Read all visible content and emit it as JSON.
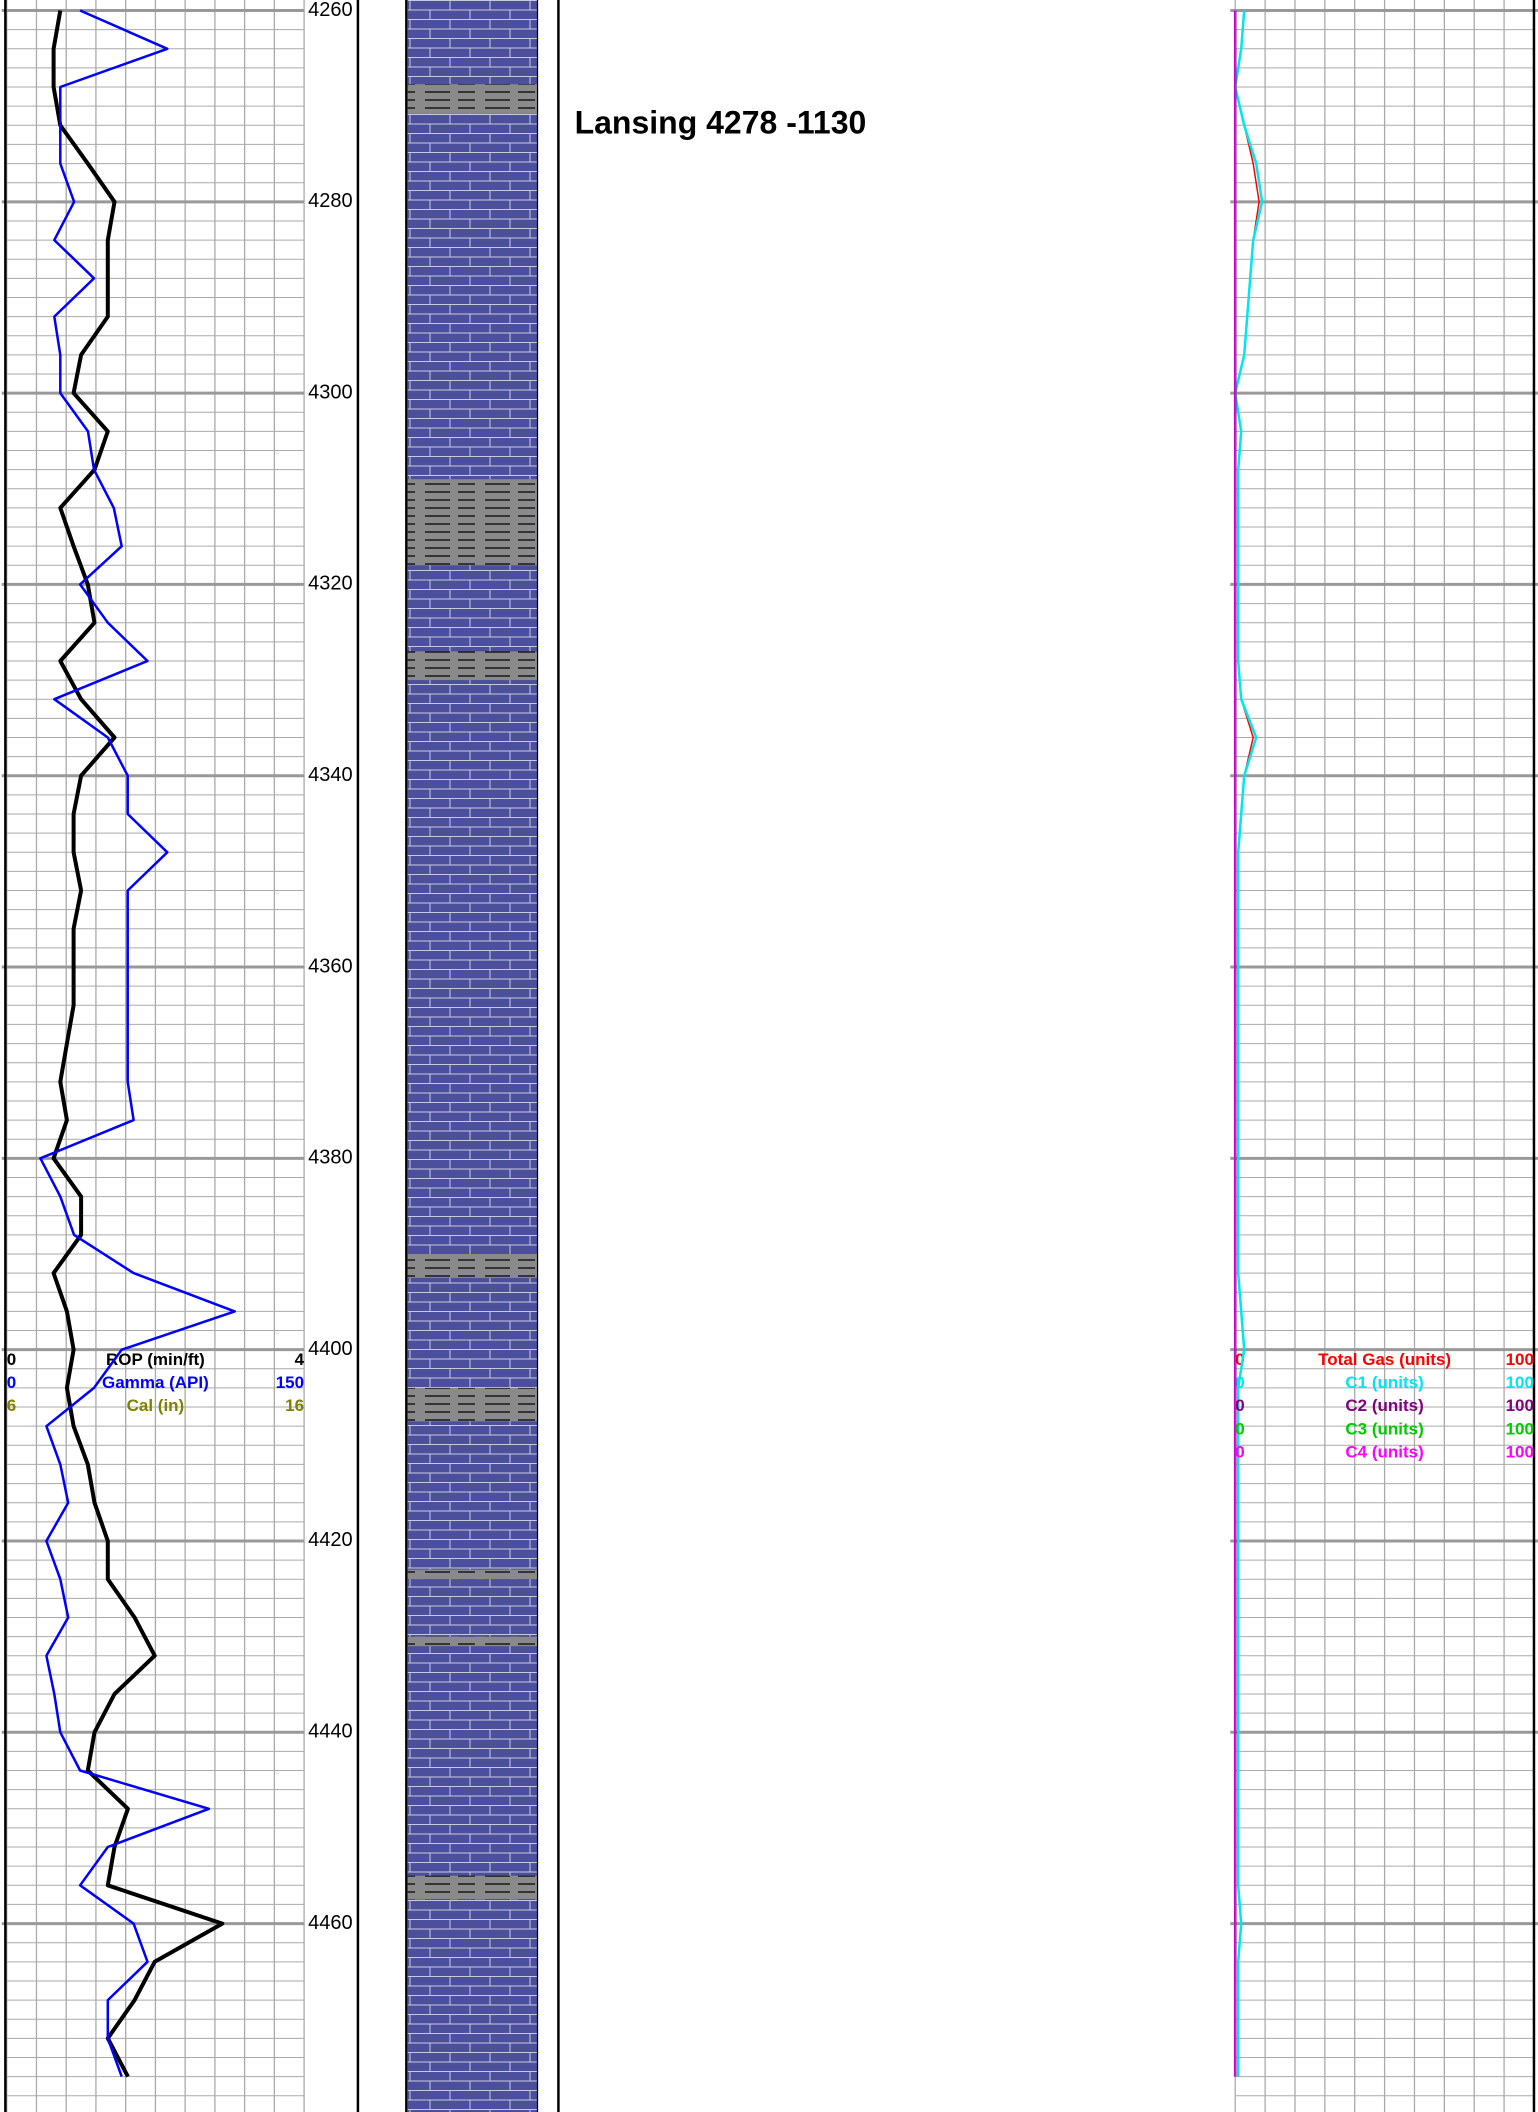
{
  "chart_data": {
    "type": "line",
    "ylim": [
      4258.9,
      4479.7
    ],
    "yticks": [
      4260,
      4280,
      4300,
      4320,
      4340,
      4360,
      4380,
      4400,
      4420,
      4440,
      4460
    ],
    "grid": true,
    "annotation": "Lansing 4278  -1130",
    "depths": [
      4260,
      4264,
      4268,
      4272,
      4276,
      4280,
      4284,
      4288,
      4292,
      4296,
      4300,
      4304,
      4308,
      4312,
      4316,
      4320,
      4324,
      4328,
      4332,
      4336,
      4340,
      4344,
      4348,
      4352,
      4356,
      4360,
      4364,
      4368,
      4372,
      4376,
      4380,
      4384,
      4388,
      4392,
      4396,
      4400,
      4404,
      4408,
      4412,
      4416,
      4420,
      4424,
      4428,
      4432,
      4436,
      4440,
      4444,
      4448,
      4452,
      4456,
      4460,
      4464,
      4468,
      4472,
      4476
    ],
    "shale_intervals": [
      [
        4267.7,
        4270.8
      ],
      [
        4309,
        4318
      ],
      [
        4327,
        4330
      ],
      [
        4390,
        4392.5
      ],
      [
        4404,
        4407.5
      ],
      [
        4423,
        4424
      ],
      [
        4430,
        4431
      ],
      [
        4455,
        4457.5
      ]
    ],
    "left_track": [
      {
        "name": "ROP (min/ft)",
        "color": "#000000",
        "xlim": [
          0,
          4
        ],
        "width": 4,
        "values": [
          0.72,
          0.63,
          0.63,
          0.72,
          1.09,
          1.45,
          1.36,
          1.36,
          1.36,
          1.0,
          0.9,
          1.36,
          1.18,
          0.72,
          0.9,
          1.09,
          1.18,
          0.72,
          1.0,
          1.45,
          1.0,
          0.9,
          0.9,
          1.0,
          0.9,
          0.9,
          0.9,
          0.81,
          0.72,
          0.81,
          0.63,
          1.0,
          1.0,
          0.63,
          0.81,
          0.9,
          0.81,
          0.9,
          1.09,
          1.18,
          1.36,
          1.36,
          1.72,
          1.99,
          1.45,
          1.18,
          1.09,
          1.63,
          1.45,
          1.36,
          2.9,
          1.99,
          1.72,
          1.36,
          1.63
        ]
      },
      {
        "name": "Gamma (API)",
        "color": "#0000ff",
        "xlim": [
          0,
          150
        ],
        "width": 2.5,
        "values": [
          37,
          81,
          27,
          27,
          27,
          34,
          24,
          44,
          24,
          27,
          27,
          41,
          44,
          54,
          58,
          37,
          51,
          71,
          24,
          51,
          61,
          61,
          81,
          61,
          61,
          61,
          61,
          61,
          61,
          64,
          17,
          27,
          34,
          64,
          115,
          58,
          44,
          20,
          27,
          31,
          20,
          27,
          31,
          20,
          24,
          27,
          37,
          102,
          51,
          37,
          64,
          71,
          51,
          51,
          58
        ]
      },
      {
        "name": "Cal (in)",
        "color": "#808000",
        "xlim": [
          6,
          16
        ]
      }
    ],
    "gas_track": [
      {
        "name": "Total Gas (units)",
        "color": "#ff0000",
        "xlim": [
          0,
          100
        ],
        "width": 1.5,
        "values": [
          3,
          2,
          0,
          3,
          6,
          8,
          6,
          5,
          4,
          3,
          0,
          2,
          1,
          1,
          1,
          1,
          1,
          1,
          2,
          6,
          3,
          2,
          1,
          1,
          1,
          1,
          1,
          1,
          1,
          1,
          1,
          1,
          1,
          1,
          2,
          3,
          1,
          1,
          1,
          1,
          1,
          1,
          1,
          1,
          1,
          1,
          1,
          1,
          1,
          1,
          2,
          1,
          1,
          1,
          1
        ]
      },
      {
        "name": "C1 (units)",
        "color": "#00e5ee",
        "xlim": [
          0,
          100
        ],
        "width": 2.5,
        "values": [
          3,
          2,
          0,
          3,
          7,
          9,
          6,
          5,
          4,
          3,
          0,
          2,
          1,
          1,
          1,
          1,
          1,
          1,
          2,
          7,
          3,
          2,
          1,
          1,
          1,
          1,
          1,
          1,
          1,
          1,
          1,
          1,
          1,
          1,
          2,
          3,
          1,
          1,
          1,
          1,
          1,
          1,
          1,
          1,
          1,
          1,
          1,
          1,
          1,
          1,
          2,
          1,
          1,
          1,
          1
        ]
      },
      {
        "name": "C2 (units)",
        "color": "#800080",
        "xlim": [
          0,
          100
        ],
        "width": 2.5,
        "values": [
          0,
          0,
          0,
          0,
          0,
          0,
          0,
          0,
          0,
          0,
          0,
          0,
          0,
          0,
          0,
          0,
          0,
          0,
          0,
          0,
          0,
          0,
          0,
          0,
          0,
          0,
          0,
          0,
          0,
          0,
          0,
          0,
          0,
          0,
          0,
          0,
          0,
          0,
          0,
          0,
          0,
          0,
          0,
          0,
          0,
          0,
          0,
          0,
          0,
          0,
          0,
          0,
          0,
          0,
          0
        ]
      },
      {
        "name": "C3 (units)",
        "color": "#00cc00",
        "xlim": [
          0,
          100
        ]
      },
      {
        "name": "C4 (units)",
        "color": "#ff00ff",
        "xlim": [
          0,
          100
        ],
        "width": 1.5,
        "values": [
          0,
          0,
          0,
          0,
          0,
          0,
          0,
          0,
          0,
          0,
          0,
          0,
          0,
          0,
          0,
          0,
          0,
          0,
          0,
          0,
          0,
          0,
          0,
          0,
          0,
          0,
          0,
          0,
          0,
          0,
          0,
          0,
          0,
          0,
          0,
          0,
          0,
          0,
          0,
          0,
          0,
          0,
          0,
          0,
          0,
          0,
          0,
          0,
          0,
          0,
          0,
          0,
          0,
          0,
          0
        ]
      }
    ]
  }
}
